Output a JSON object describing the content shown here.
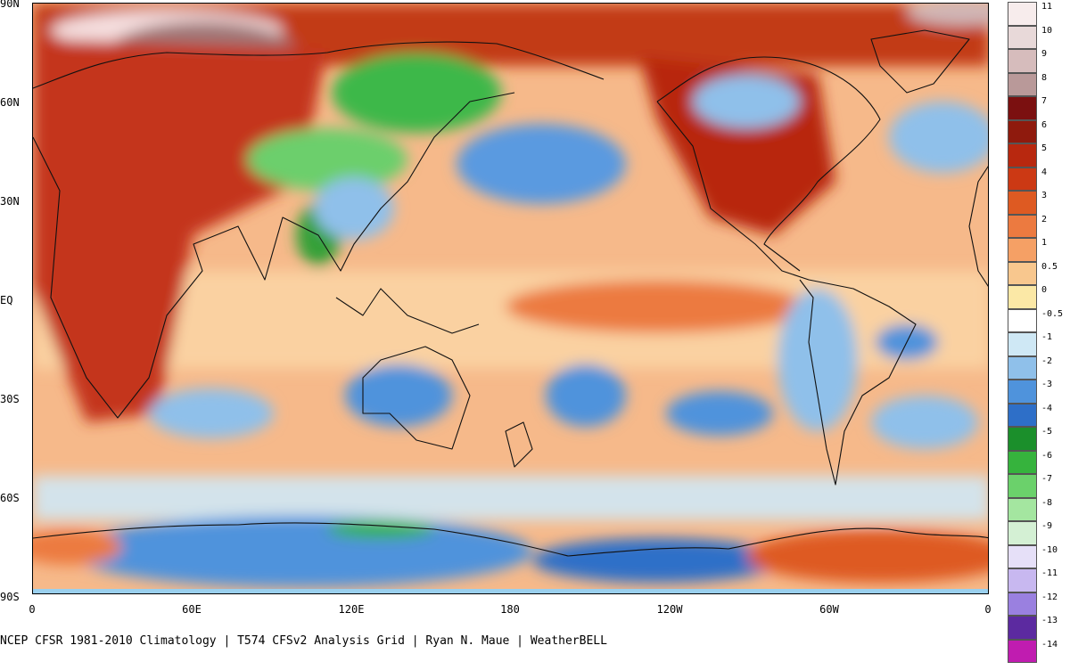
{
  "map": {
    "lat_labels": [
      "90N",
      "60N",
      "30N",
      "EQ",
      "30S",
      "60S",
      "90S"
    ],
    "lon_labels": [
      "0",
      "60E",
      "120E",
      "180",
      "120W",
      "60W",
      "0"
    ],
    "credit": "NCEP CFSR 1981-2010 Climatology | T574 CFSv2 Analysis Grid | Ryan N. Maue | WeatherBELL"
  },
  "legend": {
    "labels": [
      "11",
      "10",
      "9",
      "8",
      "7",
      "6",
      "5",
      "4",
      "3",
      "2",
      "1",
      "0.5",
      "0",
      "-0.5",
      "-1",
      "-2",
      "-3",
      "-4",
      "-5",
      "-6",
      "-7",
      "-8",
      "-9",
      "-10",
      "-11",
      "-12",
      "-13",
      "-14"
    ],
    "colors": [
      "#f7ecec",
      "#e8d9d9",
      "#d6bcbc",
      "#b99999",
      "#7b1010",
      "#8f1a0d",
      "#b8280f",
      "#cc3914",
      "#de5a22",
      "#ec7a40",
      "#f5a065",
      "#f8c78e",
      "#fbe8a6",
      "#ffffff",
      "#cfe8f5",
      "#8fc0ea",
      "#4f93dc",
      "#2e6fc8",
      "#1b8f2b",
      "#36b33d",
      "#6bd16b",
      "#a4e6a0",
      "#d4f0d4",
      "#e6e0f8",
      "#c8b8f0",
      "#9a80e0",
      "#5c2aa0",
      "#c01cb0"
    ]
  }
}
